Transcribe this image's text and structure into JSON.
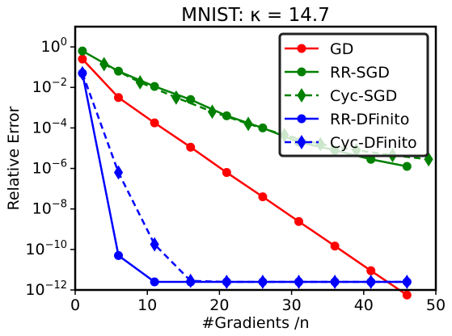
{
  "chart_data": {
    "type": "line",
    "title": "MNIST: κ = 14.7",
    "xlabel": "#Gradients /n",
    "ylabel": "Relative Error",
    "xlim": [
      0,
      50
    ],
    "ylim_log10": [
      -12,
      1
    ],
    "yscale": "log",
    "xticks": [
      0,
      10,
      20,
      30,
      40,
      50
    ],
    "xtick_labels": [
      "0",
      "10",
      "20",
      "30",
      "40",
      "50"
    ],
    "yticks_log10": [
      0,
      -2,
      -4,
      -6,
      -8,
      -10,
      -12
    ],
    "ytick_labels": [
      "10",
      "10",
      "10",
      "10",
      "10",
      "10",
      "10"
    ],
    "ytick_exponents": [
      "0",
      "−2",
      "−4",
      "−6",
      "−8",
      "−10",
      "−12"
    ],
    "grid": false,
    "legend_position": "top-right",
    "series": [
      {
        "name": "GD",
        "color": "#ff0000",
        "linestyle": "solid",
        "marker": "circle",
        "x": [
          1,
          6,
          11,
          16,
          21,
          26,
          31,
          36,
          41,
          46
        ],
        "y_log10": [
          -0.6,
          -2.5,
          -3.75,
          -4.95,
          -6.2,
          -7.4,
          -8.62,
          -9.83,
          -11.05,
          -12.25
        ]
      },
      {
        "name": "RR-SGD",
        "color": "#008000",
        "linestyle": "solid",
        "marker": "circle",
        "x": [
          1,
          6,
          11,
          16,
          21,
          26,
          31,
          36,
          41,
          46
        ],
        "y_log10": [
          -0.2,
          -1.2,
          -1.95,
          -2.6,
          -3.4,
          -4.0,
          -4.7,
          -5.1,
          -5.55,
          -5.9
        ]
      },
      {
        "name": "Cyc-SGD",
        "color": "#008000",
        "linestyle": "dashed",
        "marker": "diamond",
        "x": [
          4,
          9,
          14,
          19,
          24,
          29,
          34,
          39,
          44,
          49
        ],
        "y_log10": [
          -0.85,
          -1.75,
          -2.5,
          -3.2,
          -3.8,
          -4.35,
          -4.8,
          -5.1,
          -5.35,
          -5.55
        ]
      },
      {
        "name": "RR-DFinito",
        "color": "#0000ff",
        "linestyle": "solid",
        "marker": "circle",
        "x": [
          1,
          6,
          11,
          16,
          21,
          26,
          31,
          36,
          41,
          46
        ],
        "y_log10": [
          -1.3,
          -10.3,
          -11.6,
          -11.6,
          -11.6,
          -11.6,
          -11.6,
          -11.6,
          -11.6,
          -11.6
        ]
      },
      {
        "name": "Cyc-DFinito",
        "color": "#0000ff",
        "linestyle": "dashed",
        "marker": "diamond",
        "x": [
          1,
          6,
          11,
          16,
          21,
          26,
          31,
          36,
          41,
          46
        ],
        "y_log10": [
          -1.3,
          -6.2,
          -9.75,
          -11.55,
          -11.6,
          -11.6,
          -11.6,
          -11.6,
          -11.6,
          -11.6
        ]
      }
    ]
  }
}
